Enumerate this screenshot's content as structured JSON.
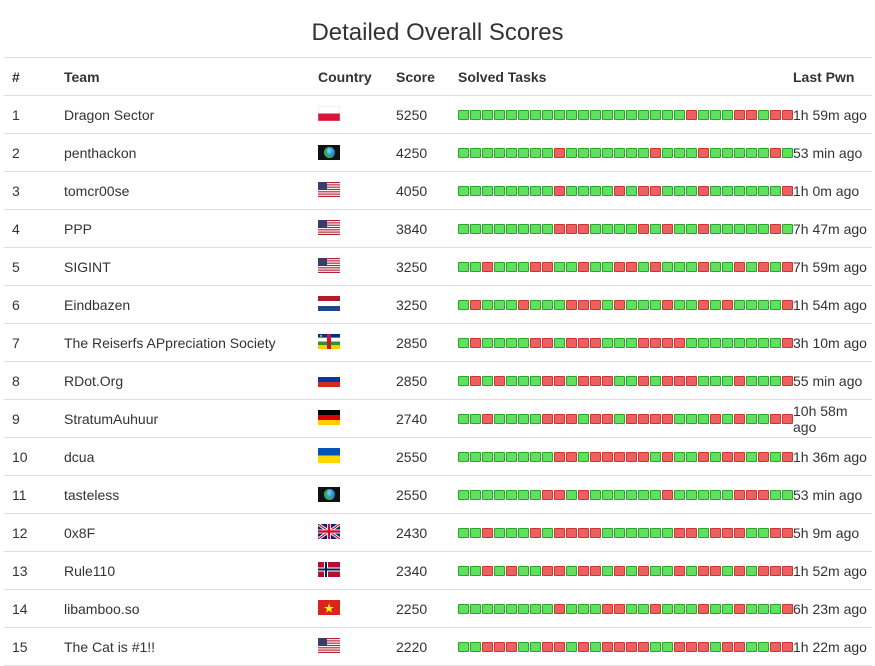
{
  "title": "Detailed Overall Scores",
  "headers": {
    "rank": "#",
    "team": "Team",
    "country": "Country",
    "score": "Score",
    "tasks": "Solved Tasks",
    "last": "Last Pwn"
  },
  "rows": [
    {
      "rank": "1",
      "team": "Dragon Sector",
      "country": "pl",
      "score": "5250",
      "tasks": "1111111111111111111011100100",
      "last": "1h 59m ago"
    },
    {
      "rank": "2",
      "team": "penthackon",
      "country": "world",
      "score": "4250",
      "tasks": "1111111101111111011101111101",
      "last": "53 min ago"
    },
    {
      "rank": "3",
      "team": "tomcr00se",
      "country": "us",
      "score": "4050",
      "tasks": "1111111101111010011101111110",
      "last": "1h 0m ago"
    },
    {
      "rank": "4",
      "team": "PPP",
      "country": "us",
      "score": "3840",
      "tasks": "1111111100011110101101111101",
      "last": "7h 47m ago"
    },
    {
      "rank": "5",
      "team": "SIGINT",
      "country": "us",
      "score": "3250",
      "tasks": "1101110011011001011101101010",
      "last": "7h 59m ago"
    },
    {
      "rank": "6",
      "team": "Eindbazen",
      "country": "nl",
      "score": "3250",
      "tasks": "1011101110001011101101011110",
      "last": "1h 54m ago"
    },
    {
      "rank": "7",
      "team": "The Reiserfs APpreciation Society",
      "country": "cf",
      "score": "2850",
      "tasks": "1011110010001110000111111110",
      "last": "3h 10m ago"
    },
    {
      "rank": "8",
      "team": "RDot.Org",
      "country": "ru",
      "score": "2850",
      "tasks": "1010111001000110100011101110",
      "last": "55 min ago"
    },
    {
      "rank": "9",
      "team": "StratumAuhuur",
      "country": "de",
      "score": "2740",
      "tasks": "1101111000100100001110101100",
      "last": "10h 58m ago"
    },
    {
      "rank": "10",
      "team": "dcua",
      "country": "ua",
      "score": "2550",
      "tasks": "1111111100100000101101001010",
      "last": "1h 36m ago"
    },
    {
      "rank": "11",
      "team": "tasteless",
      "country": "world",
      "score": "2550",
      "tasks": "1111111001011111101111100011",
      "last": "53 min ago"
    },
    {
      "rank": "12",
      "team": "0x8F",
      "country": "gb",
      "score": "2430",
      "tasks": "1101110100001111110010001100",
      "last": "5h 9m ago"
    },
    {
      "rank": "13",
      "team": "Rule110",
      "country": "no",
      "score": "2340",
      "tasks": "1101011001001010110100101000",
      "last": "1h 52m ago"
    },
    {
      "rank": "14",
      "team": "libamboo.so",
      "country": "vn",
      "score": "2250",
      "tasks": "1111111101110011011101101110",
      "last": "6h 23m ago"
    },
    {
      "rank": "15",
      "team": "The Cat is #1!!",
      "country": "us",
      "score": "2220",
      "tasks": "1100011001010000110001001100",
      "last": "1h 22m ago"
    }
  ]
}
